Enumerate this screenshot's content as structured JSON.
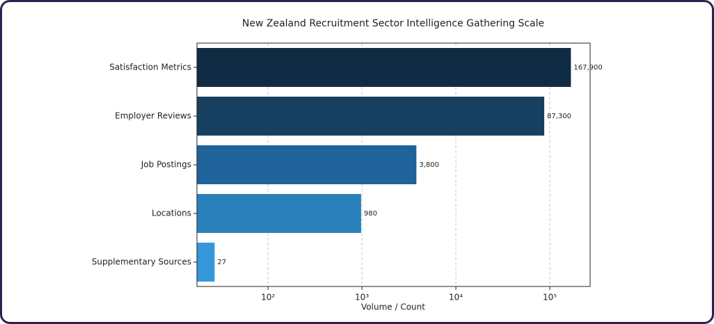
{
  "chart_data": {
    "type": "barh",
    "title": "New Zealand Recruitment Sector Intelligence Gathering Scale",
    "categories": [
      "Satisfaction Metrics",
      "Employer Reviews",
      "Job Postings",
      "Locations",
      "Supplementary Sources"
    ],
    "values": [
      167900,
      87300,
      3800,
      980,
      27
    ],
    "value_labels": [
      "167,900",
      "87,300",
      "3,800",
      "980",
      "27"
    ],
    "colors": [
      "#102c44",
      "#173f5f",
      "#20639b",
      "#2a80bb",
      "#3498db"
    ],
    "xlabel": "Volume / Count",
    "xscale": "log",
    "xlim": [
      17.5,
      269000
    ],
    "xticks": [
      {
        "value": 100,
        "label": "10²"
      },
      {
        "value": 1000,
        "label": "10³"
      },
      {
        "value": 10000,
        "label": "10⁴"
      },
      {
        "value": 100000,
        "label": "10⁵"
      }
    ],
    "grid": true
  }
}
